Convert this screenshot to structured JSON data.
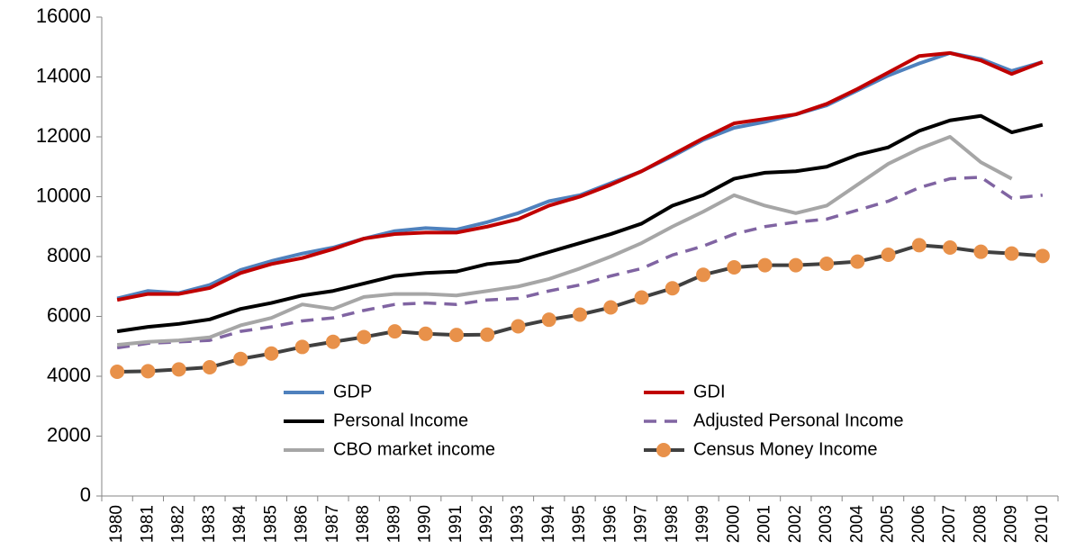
{
  "chart_data": {
    "type": "line",
    "categories": [
      "1980",
      "1981",
      "1982",
      "1983",
      "1984",
      "1985",
      "1986",
      "1987",
      "1988",
      "1989",
      "1990",
      "1991",
      "1992",
      "1993",
      "1994",
      "1995",
      "1996",
      "1997",
      "1998",
      "1999",
      "2000",
      "2001",
      "2002",
      "2003",
      "2004",
      "2005",
      "2006",
      "2007",
      "2008",
      "2009",
      "2010"
    ],
    "ylim": [
      0,
      16000
    ],
    "yticks": [
      0,
      2000,
      4000,
      6000,
      8000,
      10000,
      12000,
      14000,
      16000
    ],
    "grid": false,
    "legend": "inside-bottom",
    "series": [
      {
        "name": "GDP",
        "color": "#4f81bd",
        "values": [
          6600,
          6850,
          6780,
          7050,
          7550,
          7850,
          8100,
          8300,
          8600,
          8850,
          8950,
          8900,
          9150,
          9450,
          9850,
          10050,
          10450,
          10850,
          11350,
          11900,
          12300,
          12500,
          12750,
          13050,
          13550,
          14050,
          14450,
          14800,
          14600,
          14200,
          14500
        ]
      },
      {
        "name": "GDI",
        "color": "#c00000",
        "values": [
          6550,
          6750,
          6750,
          6950,
          7450,
          7750,
          7950,
          8250,
          8600,
          8750,
          8800,
          8800,
          9000,
          9250,
          9700,
          10000,
          10400,
          10850,
          11400,
          11950,
          12450,
          12600,
          12750,
          13100,
          13600,
          14150,
          14700,
          14800,
          14550,
          14100,
          14500
        ]
      },
      {
        "name": "Personal Income",
        "color": "#000000",
        "values": [
          5500,
          5650,
          5750,
          5900,
          6250,
          6450,
          6700,
          6850,
          7100,
          7350,
          7450,
          7500,
          7750,
          7850,
          8150,
          8450,
          8750,
          9100,
          9700,
          10050,
          10600,
          10800,
          10850,
          11000,
          11400,
          11650,
          12200,
          12550,
          12700,
          12150,
          12400
        ]
      },
      {
        "name": "Adjusted Personal Income",
        "color": "#8064a2",
        "dashed": true,
        "values": [
          4950,
          5100,
          5150,
          5200,
          5500,
          5650,
          5850,
          5950,
          6200,
          6400,
          6450,
          6400,
          6550,
          6600,
          6850,
          7050,
          7350,
          7600,
          8050,
          8350,
          8750,
          9000,
          9150,
          9250,
          9550,
          9850,
          10300,
          10600,
          10650,
          9950,
          10050
        ]
      },
      {
        "name": "CBO market income",
        "color": "#a6a6a6",
        "values": [
          5050,
          5150,
          5200,
          5300,
          5700,
          5950,
          6400,
          6250,
          6650,
          6750,
          6750,
          6700,
          6850,
          7000,
          7250,
          7600,
          8000,
          8450,
          9000,
          9500,
          10050,
          9700,
          9450,
          9700,
          10400,
          11100,
          11600,
          12000,
          11150,
          10600,
          null
        ]
      },
      {
        "name": "Census Money Income",
        "color": "#404040",
        "marker": "circle",
        "marker_color": "#e8914a",
        "values": [
          4150,
          4170,
          4230,
          4300,
          4580,
          4760,
          4980,
          5150,
          5310,
          5500,
          5420,
          5380,
          5390,
          5670,
          5890,
          6060,
          6300,
          6630,
          6940,
          7390,
          7640,
          7710,
          7710,
          7760,
          7830,
          8060,
          8380,
          8300,
          8160,
          8100,
          8020
        ]
      }
    ]
  }
}
